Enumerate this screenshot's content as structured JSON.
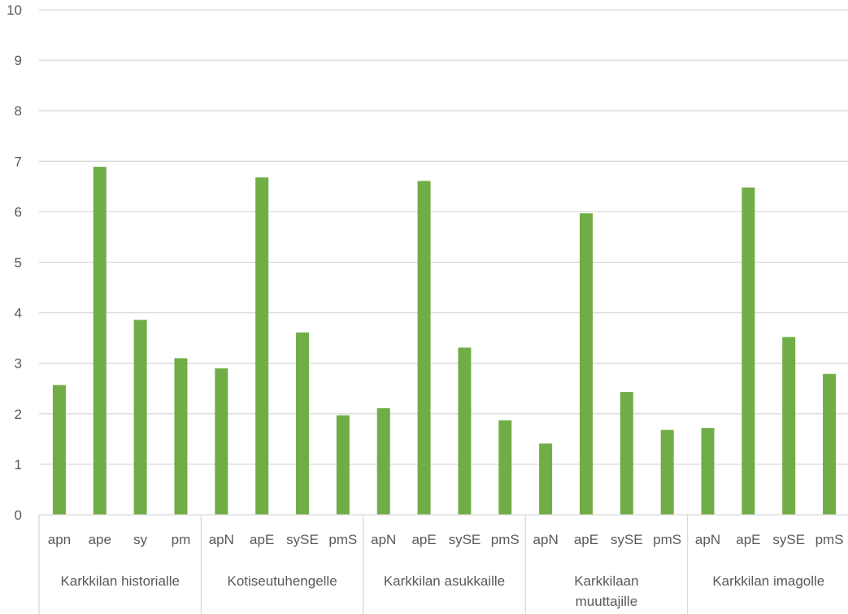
{
  "chart_data": {
    "type": "bar",
    "title": "",
    "xlabel": "",
    "ylabel": "",
    "ylim": [
      0,
      10
    ],
    "yticks": [
      0,
      1,
      2,
      3,
      4,
      5,
      6,
      7,
      8,
      9,
      10
    ],
    "grid": true,
    "legend": "none",
    "bar_color": "#70ad47",
    "groups": [
      {
        "label_lines": [
          "Karkkilan historialle"
        ],
        "categories": [
          "apn",
          "ape",
          "sy",
          "pm"
        ],
        "values": [
          2.57,
          6.89,
          3.86,
          3.1
        ]
      },
      {
        "label_lines": [
          "Kotiseutuhengelle"
        ],
        "categories": [
          "apN",
          "apE",
          "sySE",
          "pmS"
        ],
        "values": [
          2.9,
          6.68,
          3.61,
          1.97
        ]
      },
      {
        "label_lines": [
          "Karkkilan asukkaille"
        ],
        "categories": [
          "apN",
          "apE",
          "sySE",
          "pmS"
        ],
        "values": [
          2.11,
          6.61,
          3.31,
          1.87
        ]
      },
      {
        "label_lines": [
          "Karkkilaan",
          "muuttajille"
        ],
        "categories": [
          "apN",
          "apE",
          "sySE",
          "pmS"
        ],
        "values": [
          1.41,
          5.97,
          2.43,
          1.68
        ]
      },
      {
        "label_lines": [
          "Karkkilan imagolle"
        ],
        "categories": [
          "apN",
          "apE",
          "sySE",
          "pmS"
        ],
        "values": [
          1.72,
          6.48,
          3.52,
          2.79
        ]
      }
    ]
  }
}
